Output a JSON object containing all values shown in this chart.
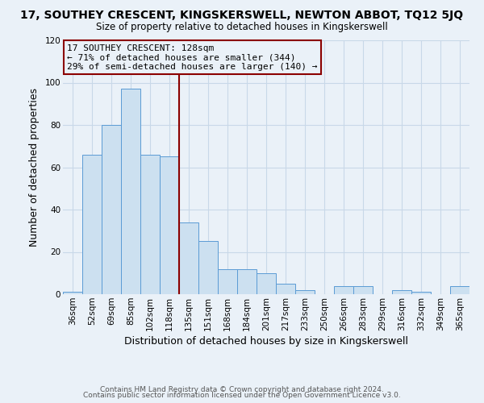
{
  "title": "17, SOUTHEY CRESCENT, KINGSKERSWELL, NEWTON ABBOT, TQ12 5JQ",
  "subtitle": "Size of property relative to detached houses in Kingskerswell",
  "xlabel": "Distribution of detached houses by size in Kingskerswell",
  "ylabel": "Number of detached properties",
  "footer_line1": "Contains HM Land Registry data © Crown copyright and database right 2024.",
  "footer_line2": "Contains public sector information licensed under the Open Government Licence v3.0.",
  "annotation_title": "17 SOUTHEY CRESCENT: 128sqm",
  "annotation_line2": "← 71% of detached houses are smaller (344)",
  "annotation_line3": "29% of semi-detached houses are larger (140) →",
  "bar_labels": [
    "36sqm",
    "52sqm",
    "69sqm",
    "85sqm",
    "102sqm",
    "118sqm",
    "135sqm",
    "151sqm",
    "168sqm",
    "184sqm",
    "201sqm",
    "217sqm",
    "233sqm",
    "250sqm",
    "266sqm",
    "283sqm",
    "299sqm",
    "316sqm",
    "332sqm",
    "349sqm",
    "365sqm"
  ],
  "bar_values": [
    1,
    66,
    80,
    97,
    66,
    65,
    34,
    25,
    12,
    12,
    10,
    5,
    2,
    0,
    4,
    4,
    0,
    2,
    1,
    0,
    4
  ],
  "bar_color": "#cce0f0",
  "bar_edge_color": "#5b9bd5",
  "vline_color": "#8b0000",
  "annotation_box_edge_color": "#8b0000",
  "ylim": [
    0,
    120
  ],
  "yticks": [
    0,
    20,
    40,
    60,
    80,
    100,
    120
  ],
  "grid_color": "#c8d8e8",
  "bg_color": "#eaf1f8",
  "title_fontsize": 10,
  "subtitle_fontsize": 8.5,
  "annotation_fontsize": 8.0,
  "xlabel_fontsize": 9,
  "ylabel_fontsize": 9,
  "tick_fontsize": 7.5,
  "footer_fontsize": 6.5
}
